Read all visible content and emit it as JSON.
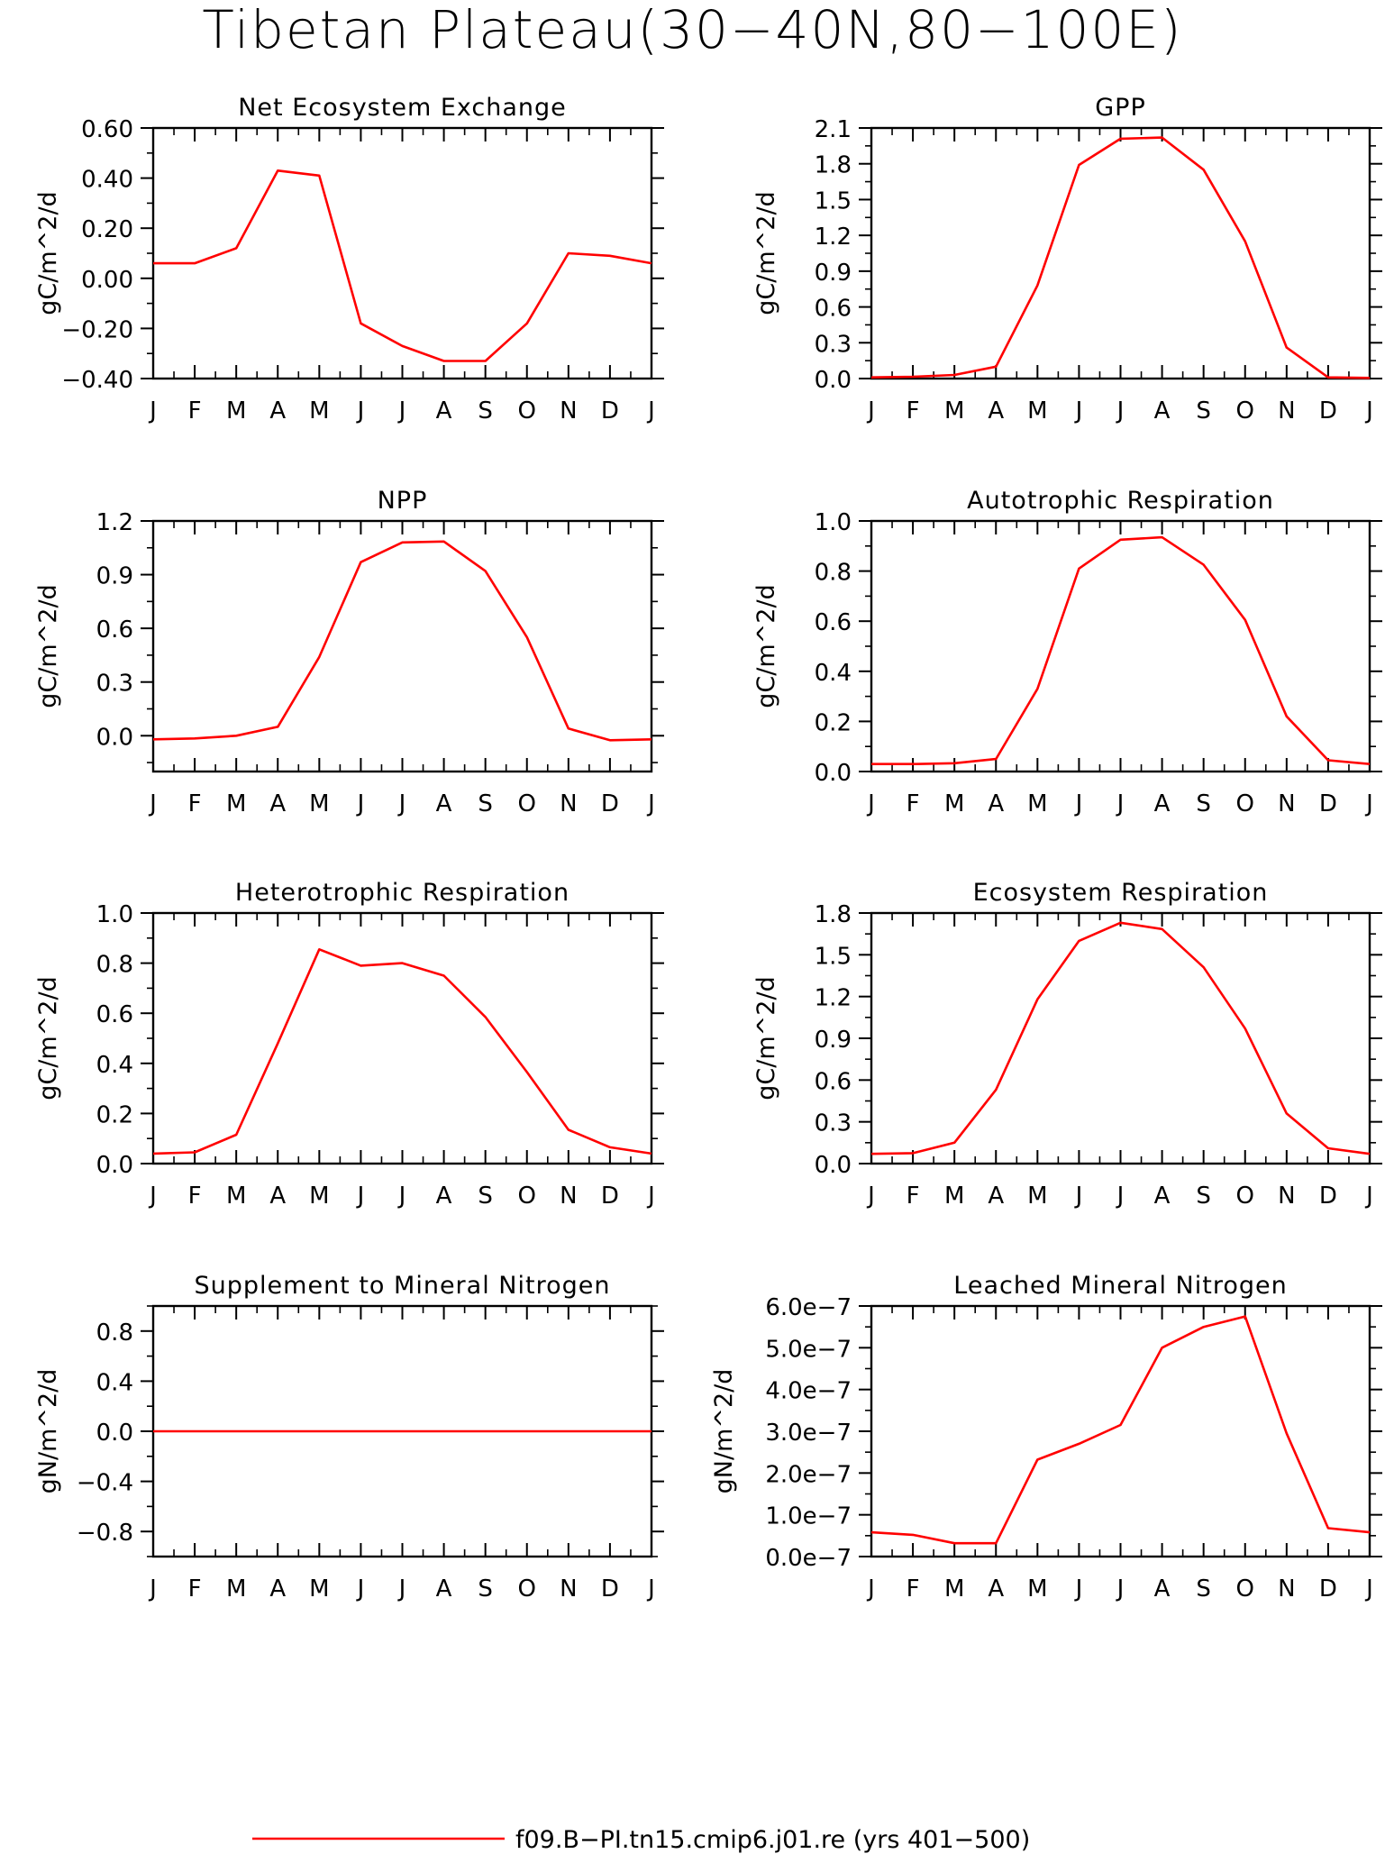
{
  "title": "Tibetan Plateau(30−40N,80−100E)",
  "legend": {
    "label": "f09.B−PI.tn15.cmip6.j01.re (yrs 401−500)",
    "color": "#ff0000",
    "position": "bottom-center"
  },
  "months": [
    "J",
    "F",
    "M",
    "A",
    "M",
    "J",
    "J",
    "A",
    "S",
    "O",
    "N",
    "D",
    "J"
  ],
  "line_color": "#ff0000",
  "chart_data": [
    {
      "type": "line",
      "title": "Net Ecosystem Exchange",
      "ylabel": "gC/m^2/d",
      "ylim": [
        -0.4,
        0.6
      ],
      "yticks": [
        -0.4,
        -0.2,
        0.0,
        0.2,
        0.4,
        0.6
      ],
      "ytick_labels": [
        "−0.40",
        "−0.20",
        "0.00",
        "0.20",
        "0.40",
        "0.60"
      ],
      "values": [
        0.06,
        0.06,
        0.12,
        0.43,
        0.41,
        -0.18,
        -0.27,
        -0.33,
        -0.33,
        -0.18,
        0.1,
        0.09,
        0.06
      ]
    },
    {
      "type": "line",
      "title": "GPP",
      "ylabel": "gC/m^2/d",
      "ylim": [
        0.0,
        2.1
      ],
      "yticks": [
        0.0,
        0.3,
        0.6,
        0.9,
        1.2,
        1.5,
        1.8,
        2.1
      ],
      "ytick_labels": [
        "0.0",
        "0.3",
        "0.6",
        "0.9",
        "1.2",
        "1.5",
        "1.8",
        "2.1"
      ],
      "values": [
        0.01,
        0.015,
        0.03,
        0.1,
        0.78,
        1.79,
        2.01,
        2.02,
        1.75,
        1.15,
        0.26,
        0.01,
        0.005
      ]
    },
    {
      "type": "line",
      "title": "NPP",
      "ylabel": "gC/m^2/d",
      "ylim": [
        -0.2,
        1.2
      ],
      "yticks": [
        0.0,
        0.3,
        0.6,
        0.9,
        1.2
      ],
      "ytick_labels": [
        "0.0",
        "0.3",
        "0.6",
        "0.9",
        "1.2"
      ],
      "values": [
        -0.02,
        -0.015,
        0.0,
        0.05,
        0.44,
        0.97,
        1.08,
        1.085,
        0.92,
        0.55,
        0.04,
        -0.025,
        -0.02
      ]
    },
    {
      "type": "line",
      "title": "Autotrophic Respiration",
      "ylabel": "gC/m^2/d",
      "ylim": [
        0.0,
        1.0
      ],
      "yticks": [
        0.0,
        0.2,
        0.4,
        0.6,
        0.8,
        1.0
      ],
      "ytick_labels": [
        "0.0",
        "0.2",
        "0.4",
        "0.6",
        "0.8",
        "1.0"
      ],
      "values": [
        0.03,
        0.03,
        0.033,
        0.05,
        0.33,
        0.81,
        0.925,
        0.935,
        0.825,
        0.605,
        0.22,
        0.045,
        0.03
      ]
    },
    {
      "type": "line",
      "title": "Heterotrophic Respiration",
      "ylabel": "gC/m^2/d",
      "ylim": [
        0.0,
        1.0
      ],
      "yticks": [
        0.0,
        0.2,
        0.4,
        0.6,
        0.8,
        1.0
      ],
      "ytick_labels": [
        "0.0",
        "0.2",
        "0.4",
        "0.6",
        "0.8",
        "1.0"
      ],
      "values": [
        0.04,
        0.045,
        0.115,
        0.48,
        0.855,
        0.79,
        0.8,
        0.75,
        0.585,
        0.365,
        0.135,
        0.065,
        0.04
      ]
    },
    {
      "type": "line",
      "title": "Ecosystem Respiration",
      "ylabel": "gC/m^2/d",
      "ylim": [
        0.0,
        1.8
      ],
      "yticks": [
        0.0,
        0.3,
        0.6,
        0.9,
        1.2,
        1.5,
        1.8
      ],
      "ytick_labels": [
        "0.0",
        "0.3",
        "0.6",
        "0.9",
        "1.2",
        "1.5",
        "1.8"
      ],
      "values": [
        0.07,
        0.075,
        0.15,
        0.53,
        1.18,
        1.6,
        1.73,
        1.685,
        1.41,
        0.97,
        0.36,
        0.11,
        0.07
      ]
    },
    {
      "type": "line",
      "title": "Supplement to Mineral Nitrogen",
      "ylabel": "gN/m^2/d",
      "ylim": [
        -1.0,
        1.0
      ],
      "yticks": [
        -0.8,
        -0.4,
        0.0,
        0.4,
        0.8
      ],
      "ytick_labels": [
        "−0.8",
        "−0.4",
        "0.0",
        "0.4",
        "0.8"
      ],
      "values": [
        0,
        0,
        0,
        0,
        0,
        0,
        0,
        0,
        0,
        0,
        0,
        0,
        0
      ]
    },
    {
      "type": "line",
      "title": "Leached Mineral Nitrogen",
      "ylabel": "gN/m^2/d",
      "ylim": [
        0.0,
        6e-07
      ],
      "yticks": [
        0.0,
        1e-07,
        2e-07,
        3e-07,
        4e-07,
        5e-07,
        6e-07
      ],
      "ytick_labels": [
        "0.0e−7",
        "1.0e−7",
        "2.0e−7",
        "3.0e−7",
        "4.0e−7",
        "5.0e−7",
        "6.0e−7"
      ],
      "values": [
        5.8e-08,
        5.2e-08,
        3.2e-08,
        3.2e-08,
        2.32e-07,
        2.7e-07,
        3.15e-07,
        5e-07,
        5.5e-07,
        5.75e-07,
        2.95e-07,
        6.8e-08,
        5.8e-08
      ]
    }
  ]
}
